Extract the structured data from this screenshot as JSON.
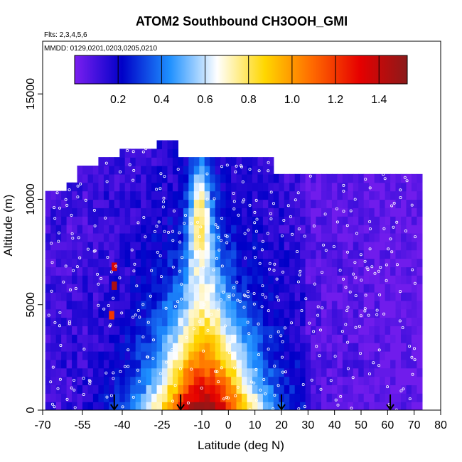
{
  "chart_data": {
    "type": "heatmap",
    "title": "ATOM2 Southbound CH3OOH_GMI",
    "flights_note": "Flts: 2,3,4,5,6",
    "dates_note": "MMDD: 0129,0201,0203,0205,0210",
    "xlabel": "Latitude (deg N)",
    "ylabel": "Altitude (m)",
    "xlim": [
      -70,
      80
    ],
    "ylim": [
      0,
      17500
    ],
    "x_ticks": [
      -70,
      -55,
      -40,
      -25,
      -10,
      0,
      10,
      20,
      30,
      40,
      50,
      60,
      70,
      80
    ],
    "y_ticks": [
      0,
      5000,
      10000,
      15000
    ],
    "colorbar": {
      "range": [
        0.0,
        1.53
      ],
      "ticks": [
        0.2,
        0.4,
        0.6,
        0.8,
        1.0,
        1.2,
        1.4
      ],
      "colors": [
        "#7b1ff0",
        "#0000c8",
        "#1e90ff",
        "#ffffff",
        "#ffd700",
        "#ff6a00",
        "#e60000",
        "#8b1a1a"
      ]
    },
    "arrow_latitudes": [
      -43,
      -18,
      20,
      61
    ],
    "grid": false,
    "colors": {
      "track_points": "#ffffff"
    }
  }
}
